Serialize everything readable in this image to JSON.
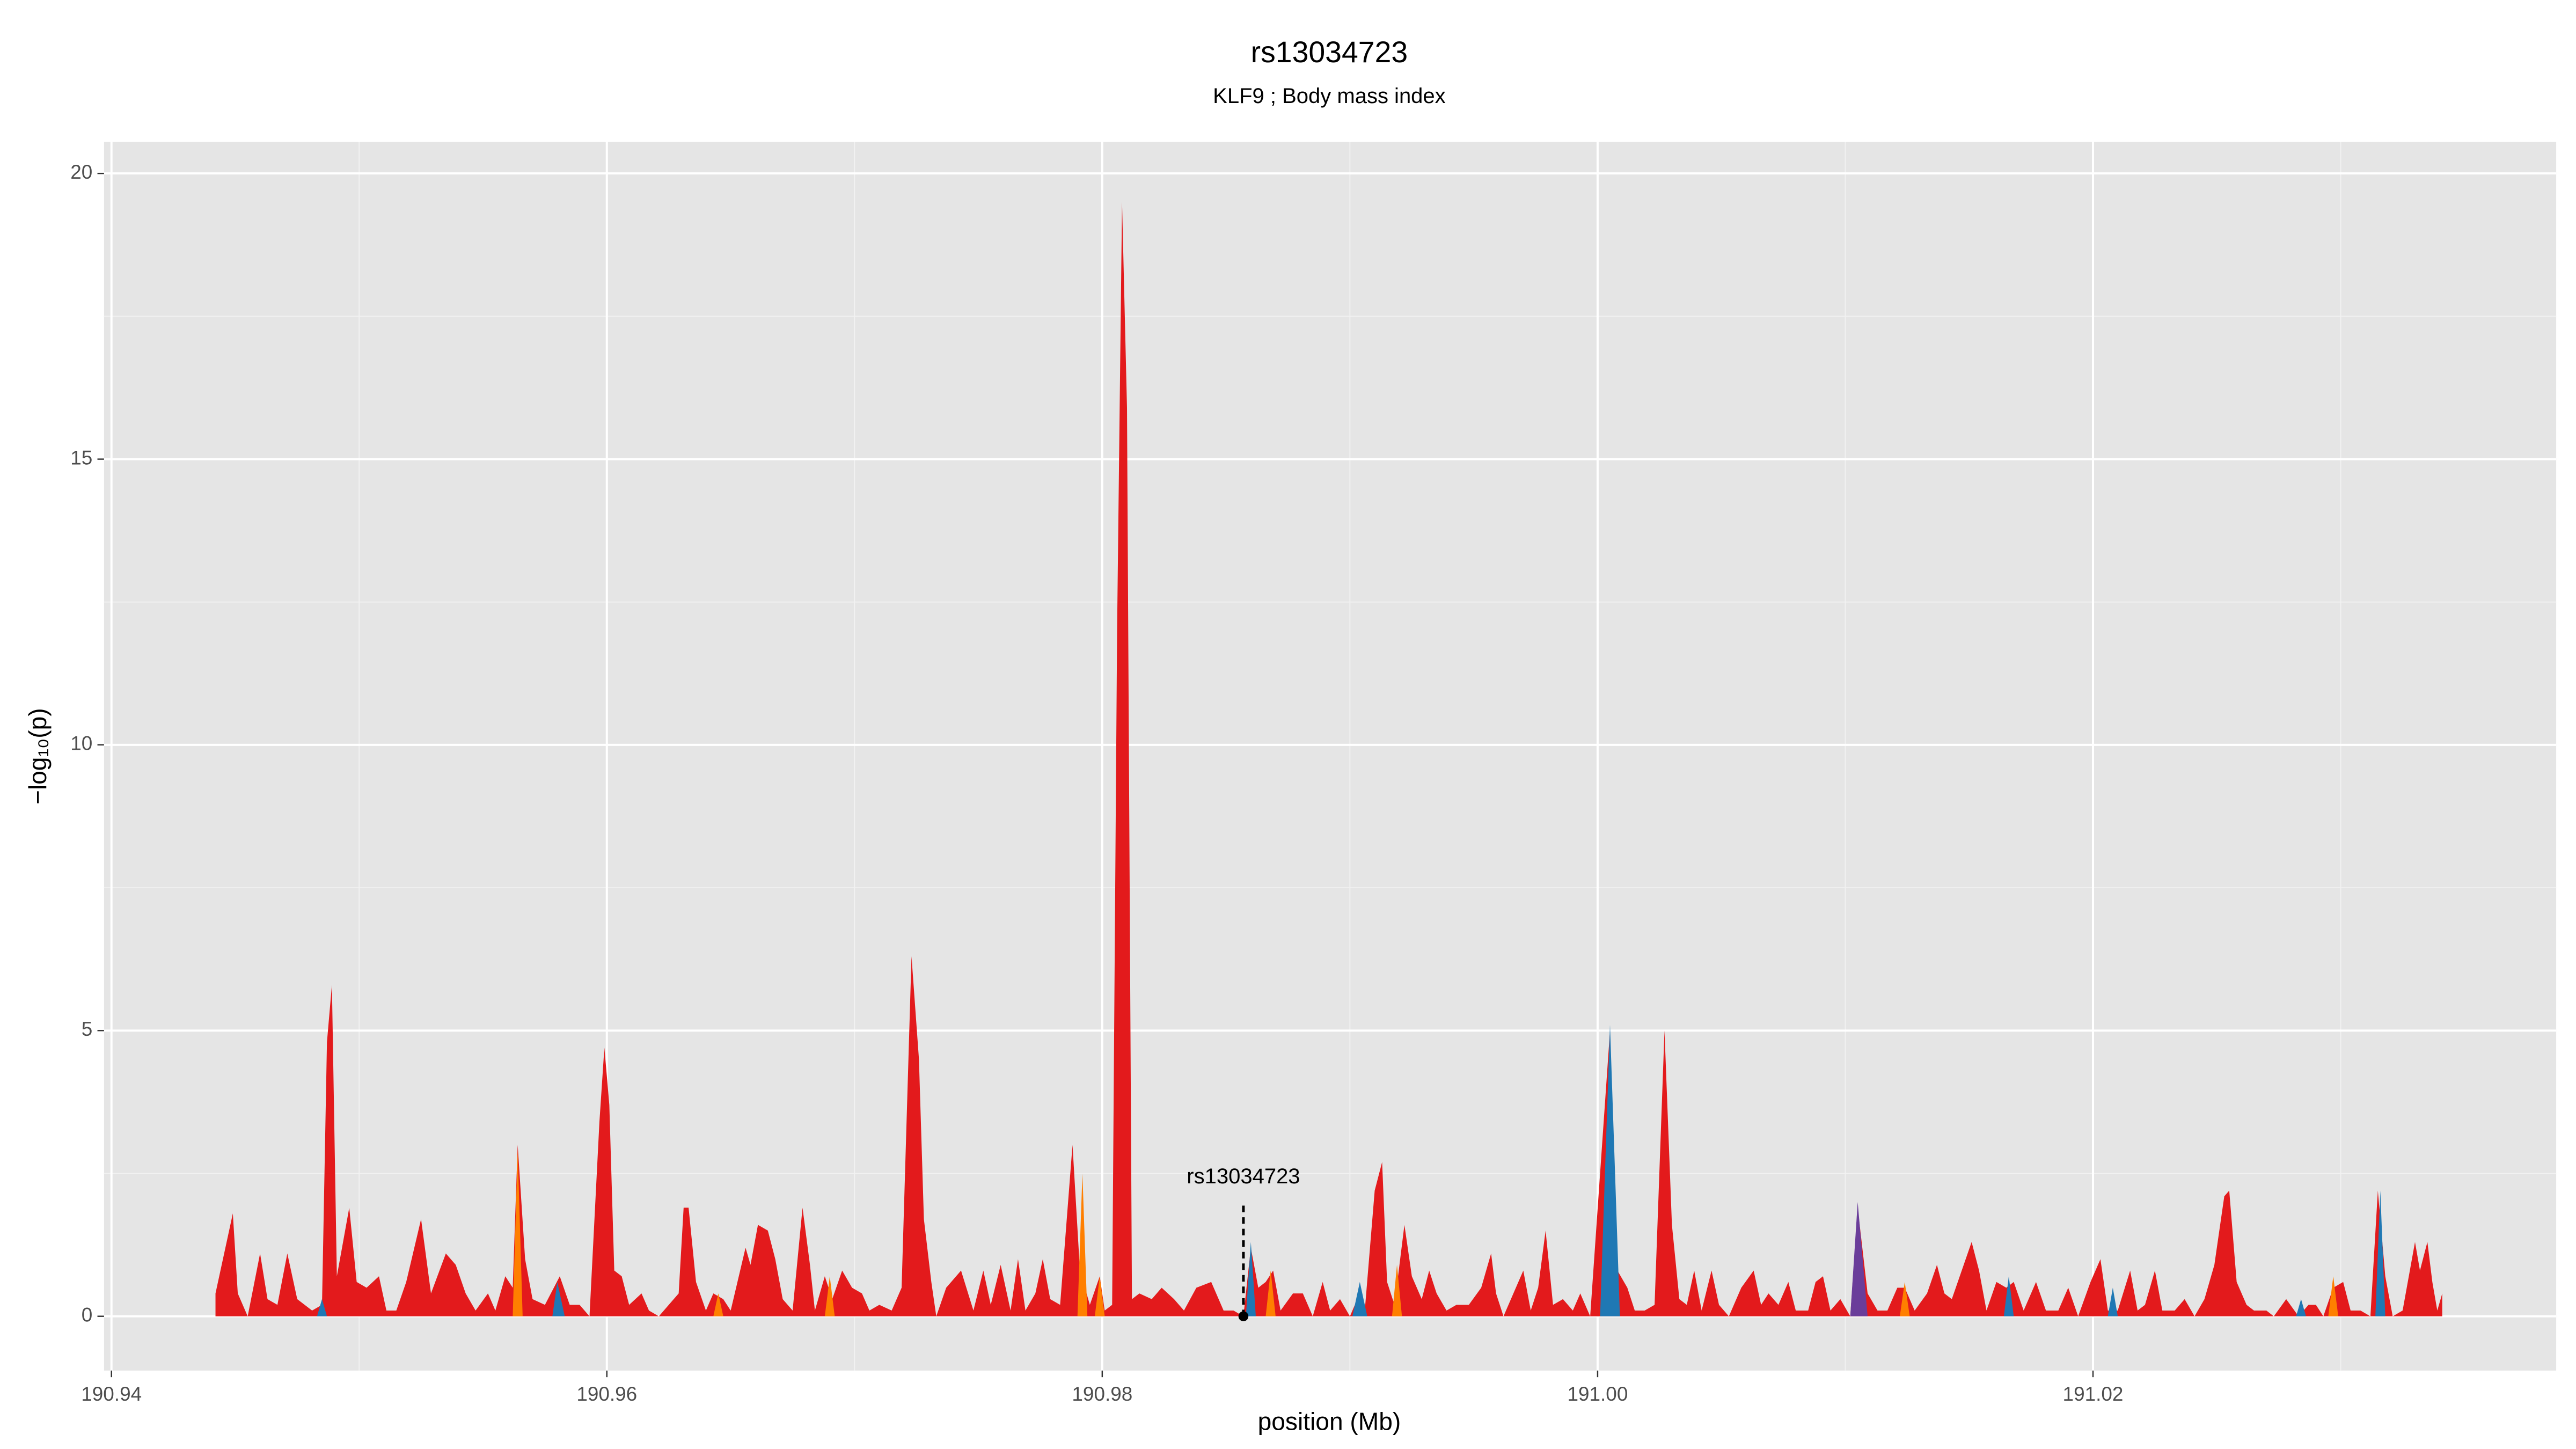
{
  "chart_data": {
    "type": "area",
    "title": "rs13034723",
    "subtitle": "KLF9 ; Body mass index",
    "x_label": "position (Mb)",
    "y_label": "−log₁₀(p)",
    "xlim": [
      190.9397,
      191.0387
    ],
    "ylim": [
      -0.95,
      20.55
    ],
    "xticks": [
      190.94,
      190.96,
      190.98,
      {
        "value": 191,
        "label": "191.00"
      },
      191.02
    ],
    "yticks": [
      0,
      5,
      10,
      15,
      20
    ],
    "x_minor_ticks": [
      190.95,
      190.97,
      190.99,
      191.01,
      191.03
    ],
    "y_minor_ticks": [
      2.5,
      7.5,
      12.5,
      17.5
    ],
    "grid": true,
    "series": [
      {
        "color": "#e31a1c",
        "x": [
          190.9442,
          190.9449,
          190.9451,
          190.9455,
          190.946,
          190.9463,
          190.9467,
          190.9471,
          190.9475,
          190.9481,
          190.9485,
          190.9487,
          190.9489,
          190.9491,
          190.9496,
          190.9499,
          190.9503,
          190.9508,
          190.9511,
          190.9515,
          190.9519,
          190.9525,
          190.9529,
          190.9535,
          190.9539,
          190.9543,
          190.9547,
          190.9552,
          190.9555,
          190.9559,
          190.9562,
          190.9564,
          190.9567,
          190.957,
          190.9575,
          190.9581,
          190.9585,
          190.9589,
          190.9593,
          190.9597,
          190.9599,
          190.9601,
          190.9603,
          190.9606,
          190.9609,
          190.9614,
          190.9617,
          190.9621,
          190.9625,
          190.9629,
          190.9631,
          190.9633,
          190.9636,
          190.964,
          190.9643,
          190.9647,
          190.965,
          190.9656,
          190.9658,
          190.9661,
          190.9665,
          190.9668,
          190.9671,
          190.9675,
          190.9679,
          190.9682,
          190.9684,
          190.9688,
          190.9691,
          190.9695,
          190.9699,
          190.9703,
          190.9706,
          190.971,
          190.9715,
          190.9719,
          190.9723,
          190.9726,
          190.9728,
          190.9731,
          190.9733,
          190.9737,
          190.9743,
          190.9748,
          190.9752,
          190.9755,
          190.9759,
          190.9763,
          190.9766,
          190.9769,
          190.9773,
          190.9776,
          190.9779,
          190.9783,
          190.9788,
          190.9791,
          190.9795,
          190.9799,
          190.9801,
          190.9804,
          190.9806,
          190.9808,
          190.981,
          190.9812,
          190.9815,
          190.982,
          190.9824,
          190.9829,
          190.9833,
          190.9838,
          190.9844,
          190.9849,
          190.9853,
          190.9857,
          190.986,
          190.9863,
          190.9866,
          190.9869,
          190.9872,
          190.9877,
          190.9881,
          190.9885,
          190.9889,
          190.9892,
          190.9896,
          190.99,
          190.9903,
          190.9906,
          190.991,
          190.9913,
          190.9915,
          190.9918,
          190.9922,
          190.9925,
          190.9929,
          190.9932,
          190.9935,
          190.9939,
          190.9943,
          190.9948,
          190.9953,
          190.9957,
          190.9959,
          190.9962,
          190.9965,
          190.997,
          190.9973,
          190.9976,
          190.9979,
          190.9982,
          190.9986,
          190.999,
          190.9993,
          190.9997,
          191.0001,
          191.0005,
          191.0008,
          191.0012,
          191.0015,
          191.0019,
          191.0023,
          191.0027,
          191.003,
          191.0033,
          191.0036,
          191.0039,
          191.0042,
          191.0046,
          191.0049,
          191.0053,
          191.0058,
          191.0063,
          191.0066,
          191.0069,
          191.0073,
          191.0077,
          191.008,
          191.0085,
          191.0088,
          191.0091,
          191.0094,
          191.0098,
          191.0102,
          191.0105,
          191.0109,
          191.0113,
          191.0117,
          191.0121,
          191.0124,
          191.0128,
          191.0133,
          191.0137,
          191.014,
          191.0143,
          191.0147,
          191.0151,
          191.0154,
          191.0157,
          191.0161,
          191.0165,
          191.0168,
          191.0172,
          191.0177,
          191.0181,
          191.0186,
          191.019,
          191.0194,
          191.0199,
          191.0203,
          191.0206,
          191.021,
          191.0215,
          191.0218,
          191.0221,
          191.0225,
          191.0228,
          191.0233,
          191.0237,
          191.0241,
          191.0245,
          191.0249,
          191.0253,
          191.0255,
          191.0258,
          191.0262,
          191.0265,
          191.027,
          191.0273,
          191.0278,
          191.0283,
          191.0287,
          191.029,
          191.0293,
          191.0297,
          191.0301,
          191.0304,
          191.0308,
          191.0312,
          191.0315,
          191.0318,
          191.0321,
          191.0325,
          191.033,
          191.0332,
          191.0335,
          191.0337,
          191.0339,
          191.0341
        ],
        "values": [
          0.4,
          1.8,
          0.4,
          0,
          1.1,
          0.3,
          0.2,
          1.1,
          0.3,
          0.1,
          0.2,
          4.8,
          5.8,
          0.7,
          1.9,
          0.6,
          0.5,
          0.7,
          0.1,
          0.1,
          0.6,
          1.7,
          0.4,
          1.1,
          0.9,
          0.4,
          0.1,
          0.4,
          0.1,
          0.7,
          0.5,
          3,
          1,
          0.3,
          0.2,
          0.7,
          0.2,
          0.2,
          0,
          3.4,
          4.7,
          3.7,
          0.8,
          0.7,
          0.2,
          0.4,
          0.1,
          0,
          0.2,
          0.4,
          1.9,
          1.9,
          0.6,
          0.1,
          0.4,
          0.3,
          0.1,
          1.2,
          0.9,
          1.6,
          1.5,
          1,
          0.3,
          0.1,
          1.9,
          0.9,
          0.1,
          0.7,
          0.3,
          0.8,
          0.5,
          0.4,
          0.1,
          0.2,
          0.1,
          0.5,
          6.3,
          4.5,
          1.7,
          0.6,
          0,
          0.5,
          0.8,
          0.1,
          0.8,
          0.2,
          0.9,
          0.1,
          1,
          0.1,
          0.4,
          1,
          0.3,
          0.2,
          3,
          0.8,
          0.2,
          0.7,
          0.1,
          0.2,
          12,
          19.5,
          15.9,
          0.3,
          0.4,
          0.3,
          0.5,
          0.3,
          0.1,
          0.5,
          0.6,
          0.1,
          0.1,
          0,
          1.2,
          0.5,
          0.6,
          0.8,
          0.1,
          0.4,
          0.4,
          0,
          0.6,
          0.1,
          0.3,
          0,
          0.3,
          0.1,
          2.2,
          2.7,
          0.6,
          0.2,
          1.6,
          0.7,
          0.3,
          0.8,
          0.4,
          0.1,
          0.2,
          0.2,
          0.5,
          1.1,
          0.4,
          0,
          0.3,
          0.8,
          0.1,
          0.5,
          1.5,
          0.2,
          0.3,
          0.1,
          0.4,
          0,
          2.5,
          5,
          0.8,
          0.5,
          0.1,
          0.1,
          0.2,
          5,
          1.6,
          0.3,
          0.2,
          0.8,
          0.1,
          0.8,
          0.2,
          0,
          0.5,
          0.8,
          0.2,
          0.4,
          0.2,
          0.6,
          0.1,
          0.1,
          0.6,
          0.7,
          0.1,
          0.3,
          0,
          1.9,
          0.4,
          0.1,
          0.1,
          0.5,
          0.5,
          0.1,
          0.4,
          0.9,
          0.4,
          0.3,
          0.8,
          1.3,
          0.8,
          0.1,
          0.6,
          0.5,
          0.6,
          0.1,
          0.6,
          0.1,
          0.1,
          0.5,
          0,
          0.6,
          1,
          0.1,
          0.1,
          0.8,
          0.1,
          0.2,
          0.8,
          0.1,
          0.1,
          0.3,
          0,
          0.3,
          0.9,
          2.1,
          2.2,
          0.6,
          0.2,
          0.1,
          0.1,
          0,
          0.3,
          0,
          0.2,
          0.2,
          0,
          0.5,
          0.6,
          0.1,
          0.1,
          0,
          2.2,
          0.7,
          0,
          0.1,
          1.3,
          0.8,
          1.3,
          0.6,
          0.1,
          0.4
        ]
      },
      {
        "color": "#1f78b4",
        "x": [
          190.9483,
          190.9485,
          190.9487,
          190.9578,
          190.958,
          190.9583,
          190.9858,
          190.986,
          190.9862,
          190.9901,
          190.9904,
          190.9907,
          191.0001,
          191.0005,
          191.0009,
          191.0164,
          191.0166,
          191.0168,
          191.0206,
          191.0208,
          191.021,
          191.0282,
          191.0284,
          191.0286,
          191.0314,
          191.0316,
          191.0318
        ],
        "values": [
          0,
          0.3,
          0,
          0,
          0.6,
          0,
          0,
          1.3,
          0,
          0,
          0.6,
          0,
          0,
          5.1,
          0,
          0,
          0.7,
          0,
          0,
          0.5,
          0,
          0,
          0.3,
          0,
          0,
          2.2,
          0
        ]
      },
      {
        "color": "#ff7f00",
        "x": [
          190.9562,
          190.9564,
          190.9566,
          190.9643,
          190.9645,
          190.9647,
          190.9688,
          190.969,
          190.9692,
          190.979,
          190.9792,
          190.9794,
          190.9797,
          190.9799,
          190.9801,
          190.9866,
          190.9868,
          190.987,
          190.9917,
          190.9919,
          190.9921,
          191.0122,
          191.0124,
          191.0126,
          191.0295,
          191.0297,
          191.0299
        ],
        "values": [
          0,
          2.9,
          0,
          0,
          0.4,
          0,
          0,
          0.7,
          0,
          0,
          2.5,
          0,
          0,
          0.7,
          0,
          0,
          0.8,
          0,
          0,
          0.9,
          0,
          0,
          0.6,
          0,
          0,
          0.7,
          0
        ]
      },
      {
        "color": "#6a3d9a",
        "x": [
          191.0102,
          191.0105,
          191.0109
        ],
        "values": [
          0,
          2,
          0
        ]
      }
    ],
    "annotation": {
      "label": "rs13034723",
      "x": 190.9857,
      "y": 0
    }
  }
}
